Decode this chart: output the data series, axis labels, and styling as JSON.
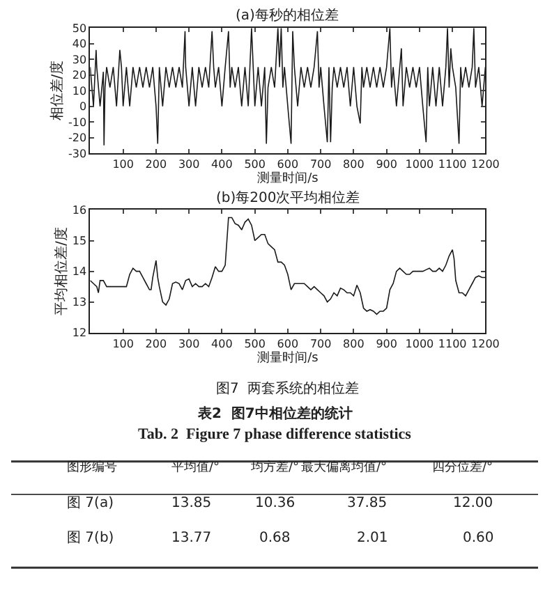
{
  "chart_data": [
    {
      "type": "line",
      "title": "(a)每秒的相位差",
      "xlabel": "测量时间/s",
      "ylabel": "相位差/度",
      "xlim": [
        0,
        1200
      ],
      "xticks": [
        100,
        200,
        300,
        400,
        500,
        600,
        700,
        800,
        900,
        1000,
        1100,
        1200
      ],
      "ylim": [
        -30,
        50
      ],
      "yticks": [
        -30,
        -20,
        -10,
        0,
        10,
        20,
        30,
        40,
        50
      ],
      "series": [
        {
          "color": "#1a1a1a",
          "x": [
            0,
            10,
            18,
            20,
            30,
            40,
            42,
            45,
            50,
            60,
            70,
            80,
            90,
            95,
            100,
            110,
            120,
            130,
            140,
            150,
            160,
            170,
            180,
            190,
            200,
            205,
            210,
            220,
            230,
            240,
            250,
            260,
            270,
            280,
            288,
            290,
            300,
            310,
            320,
            330,
            340,
            350,
            360,
            370,
            375,
            380,
            390,
            400,
            410,
            420,
            425,
            430,
            440,
            450,
            460,
            470,
            480,
            490,
            495,
            500,
            510,
            520,
            530,
            535,
            540,
            550,
            560,
            570,
            575,
            580,
            585,
            590,
            600,
            610,
            615,
            620,
            630,
            640,
            650,
            660,
            670,
            680,
            690,
            695,
            700,
            710,
            720,
            725,
            730,
            735,
            740,
            750,
            760,
            770,
            780,
            790,
            800,
            810,
            820,
            825,
            830,
            840,
            850,
            860,
            870,
            880,
            890,
            900,
            910,
            915,
            920,
            930,
            940,
            945,
            950,
            960,
            970,
            980,
            990,
            1000,
            1010,
            1020,
            1025,
            1030,
            1040,
            1050,
            1060,
            1070,
            1080,
            1085,
            1090,
            1095,
            1100,
            1110,
            1120,
            1125,
            1130,
            1140,
            1150,
            1160,
            1165,
            1170,
            1180,
            1190,
            1200
          ],
          "values": [
            25,
            0,
            36,
            25,
            0,
            22,
            -25,
            12,
            25,
            12,
            25,
            0,
            36,
            25,
            0,
            25,
            0,
            25,
            12,
            25,
            12,
            25,
            12,
            25,
            0,
            -24,
            25,
            0,
            25,
            12,
            25,
            12,
            25,
            12,
            48,
            25,
            0,
            25,
            0,
            25,
            12,
            25,
            12,
            48,
            25,
            12,
            25,
            0,
            25,
            48,
            12,
            25,
            12,
            25,
            0,
            25,
            0,
            50,
            25,
            0,
            25,
            0,
            25,
            -24,
            12,
            25,
            12,
            50,
            25,
            50,
            12,
            25,
            0,
            -24,
            48,
            25,
            0,
            25,
            12,
            25,
            12,
            25,
            48,
            12,
            25,
            0,
            -23,
            25,
            -23,
            12,
            25,
            12,
            25,
            12,
            25,
            0,
            25,
            0,
            -11,
            25,
            12,
            25,
            12,
            25,
            12,
            25,
            12,
            25,
            50,
            12,
            25,
            0,
            25,
            37,
            0,
            25,
            12,
            25,
            12,
            25,
            0,
            -23,
            25,
            0,
            25,
            0,
            25,
            0,
            25,
            50,
            12,
            37,
            25,
            12,
            -24,
            25,
            12,
            25,
            12,
            25,
            50,
            12,
            25,
            0,
            25
          ]
        }
      ]
    },
    {
      "type": "line",
      "title": "(b)每200次平均相位差",
      "xlabel": "测量时间/s",
      "ylabel": "平均相位差/度",
      "xlim": [
        0,
        1200
      ],
      "xticks": [
        100,
        200,
        300,
        400,
        500,
        600,
        700,
        800,
        900,
        1000,
        1100,
        1200
      ],
      "ylim": [
        12,
        16
      ],
      "yticks": [
        12,
        13,
        14,
        15,
        16
      ],
      "annotations": [
        "图7  两套系统的相位差"
      ],
      "series": [
        {
          "color": "#1a1a1a",
          "x": [
            0,
            10,
            20,
            25,
            30,
            40,
            50,
            60,
            70,
            80,
            90,
            100,
            110,
            120,
            130,
            140,
            150,
            160,
            170,
            180,
            185,
            190,
            200,
            205,
            210,
            220,
            230,
            240,
            250,
            260,
            270,
            280,
            290,
            300,
            310,
            320,
            330,
            340,
            350,
            360,
            370,
            380,
            390,
            400,
            410,
            420,
            430,
            440,
            450,
            460,
            470,
            480,
            490,
            500,
            510,
            520,
            530,
            540,
            550,
            560,
            570,
            580,
            590,
            600,
            610,
            620,
            630,
            640,
            650,
            660,
            670,
            680,
            690,
            700,
            710,
            720,
            730,
            740,
            750,
            760,
            770,
            780,
            790,
            800,
            810,
            820,
            830,
            840,
            850,
            860,
            870,
            880,
            890,
            900,
            910,
            920,
            930,
            940,
            950,
            960,
            970,
            980,
            990,
            1000,
            1010,
            1020,
            1030,
            1040,
            1050,
            1060,
            1070,
            1080,
            1090,
            1100,
            1105,
            1110,
            1120,
            1130,
            1140,
            1150,
            1160,
            1170,
            1180,
            1190,
            1200
          ],
          "values": [
            13.7,
            13.6,
            13.5,
            13.3,
            13.7,
            13.7,
            13.5,
            13.5,
            13.5,
            13.5,
            13.5,
            13.5,
            13.5,
            13.9,
            14.1,
            14.0,
            14.0,
            13.8,
            13.6,
            13.4,
            13.4,
            13.8,
            14.35,
            13.8,
            13.5,
            13.0,
            12.9,
            13.1,
            13.6,
            13.65,
            13.6,
            13.4,
            13.7,
            13.75,
            13.5,
            13.6,
            13.5,
            13.5,
            13.6,
            13.5,
            13.8,
            14.15,
            14.0,
            14.0,
            14.2,
            15.75,
            15.75,
            15.55,
            15.5,
            15.35,
            15.6,
            15.7,
            15.5,
            15.0,
            15.1,
            15.2,
            15.2,
            14.9,
            14.8,
            14.7,
            14.3,
            14.3,
            14.2,
            13.9,
            13.4,
            13.6,
            13.6,
            13.6,
            13.6,
            13.5,
            13.4,
            13.5,
            13.4,
            13.3,
            13.2,
            13.0,
            13.1,
            13.3,
            13.2,
            13.45,
            13.4,
            13.3,
            13.3,
            13.2,
            13.55,
            13.3,
            12.8,
            12.7,
            12.75,
            12.7,
            12.6,
            12.7,
            12.7,
            12.8,
            13.4,
            13.6,
            14.0,
            14.1,
            14.0,
            13.9,
            13.9,
            14.0,
            14.0,
            14.0,
            14.0,
            14.05,
            14.1,
            14.0,
            14.0,
            14.1,
            14.0,
            14.2,
            14.5,
            14.7,
            14.4,
            13.7,
            13.3,
            13.3,
            13.2,
            13.4,
            13.6,
            13.8,
            13.85,
            13.8,
            13.8
          ]
        }
      ]
    },
    {
      "type": "other",
      "title": "表2  图7中相位差的统计",
      "subtitle": "Tab. 2  Figure 7 phase difference statistics",
      "annotations": [
        "图形编号",
        "平均值/°",
        "均方差/°",
        "最大偏离均值/°",
        "四分位差/°",
        "图 7(a)",
        "13.85",
        "10.36",
        "37.85",
        "12.00",
        "图 7(b)",
        "13.77",
        "0.68",
        "2.01",
        "0.60"
      ]
    }
  ]
}
